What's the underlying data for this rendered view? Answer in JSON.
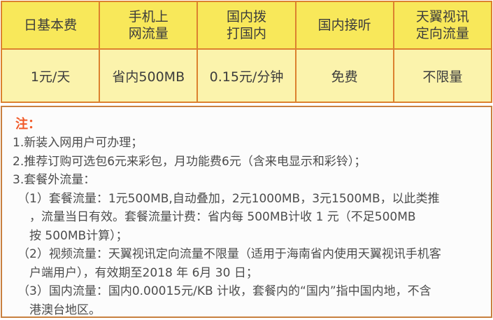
{
  "table": {
    "columns": [
      {
        "header": "日基本费",
        "value": "1元/天"
      },
      {
        "header": "手机上\n网流量",
        "value": "省内500MB"
      },
      {
        "header": "国内拨\n打国内",
        "value": "0.15元/分钟"
      },
      {
        "header": "国内接听",
        "value": "免费"
      },
      {
        "header": "天翼视讯\n定向流量",
        "value": "不限量"
      }
    ]
  },
  "notes": {
    "title": "注：",
    "lines": [
      "1.新装入网用户可办理；",
      "2.推荐订购可选包6元来彩包，月功能费6元（含来电显示和彩铃）；",
      "3.套餐外流量：",
      "（1）套餐流量：1元500MB,自动叠加，2元1000MB，3元1500MB，以此类推",
      "，流量当日有效。套餐流量计费：省内每 500MB计收 1 元（不足500MB",
      "按 500MB计算）；",
      "（2）视频流量：天翼视讯定向流量不限量（适用于海南省内使用天翼视讯手机客",
      "户端用户），有效期至2018 年 6月 30 日；",
      "（3）国内流量：国内0.00015元/KB 计收，套餐内的“国内”指中国内地，不含",
      "港澳台地区。"
    ]
  },
  "colors": {
    "table_border": "#DC812F",
    "header_bg": "#F8E85A",
    "cell_bg": "#FBF3AC",
    "notes_border": "#C8803F",
    "notes_bg": "#FCFCFC",
    "note_title": "#F15A29",
    "text": "#3C3C3C"
  }
}
